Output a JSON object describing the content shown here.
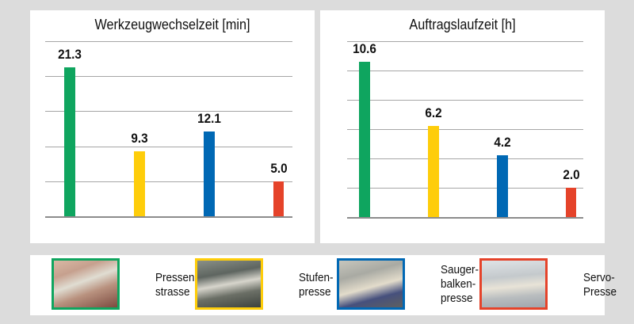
{
  "colors": {
    "green": "#0fa55f",
    "yellow": "#fecd0a",
    "blue": "#0068b4",
    "red": "#e5432a",
    "background": "#dcdcdc",
    "panel": "#ffffff",
    "grid": "#a6a6a6"
  },
  "chart_data": [
    {
      "type": "bar",
      "title": "Werkzeugwechselzeit [min]",
      "categories": [
        "Pressenstrasse",
        "Stufenpresse",
        "Saugerbalkenpresse",
        "Servo-Presse"
      ],
      "values": [
        21.3,
        9.3,
        12.1,
        5.0
      ],
      "value_labels": [
        "21.3",
        "9.3",
        "12.1",
        "5.0"
      ],
      "colors": [
        "#0fa55f",
        "#fecd0a",
        "#0068b4",
        "#e5432a"
      ],
      "xlabel": "",
      "ylabel": "",
      "ylim": [
        0,
        25
      ],
      "grid_step": 5,
      "grid": true,
      "axis_tick_labels_shown": false
    },
    {
      "type": "bar",
      "title": "Auftragslaufzeit [h]",
      "categories": [
        "Pressenstrasse",
        "Stufenpresse",
        "Saugerbalkenpresse",
        "Servo-Presse"
      ],
      "values": [
        10.6,
        6.2,
        4.2,
        2.0
      ],
      "value_labels": [
        "10.6",
        "6.2",
        "4.2",
        "2.0"
      ],
      "colors": [
        "#0fa55f",
        "#fecd0a",
        "#0068b4",
        "#e5432a"
      ],
      "xlabel": "",
      "ylabel": "",
      "ylim": [
        0,
        12
      ],
      "grid_step": 2,
      "grid": true,
      "axis_tick_labels_shown": false
    }
  ],
  "charts": {
    "left": {
      "title": "Werkzeugwechselzeit [min]"
    },
    "right": {
      "title": "Auftragslaufzeit [h]"
    }
  },
  "legend": {
    "items": [
      {
        "label": "Pressen-\nstrasse",
        "color": "#0fa55f",
        "image": "press-line-photo"
      },
      {
        "label": "Stufen-\npresse",
        "color": "#fecd0a",
        "image": "transfer-press-photo"
      },
      {
        "label": "Sauger-\nbalken-\npresse",
        "color": "#0068b4",
        "image": "crossbar-press-photo"
      },
      {
        "label": "Servo-\nPresse",
        "color": "#e5432a",
        "image": "servo-press-photo"
      }
    ]
  }
}
